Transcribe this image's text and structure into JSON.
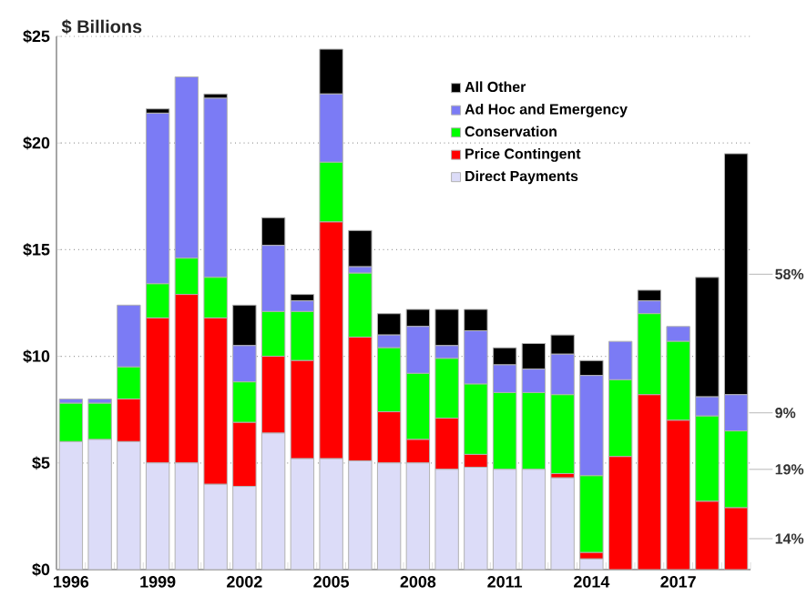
{
  "chart_data": {
    "type": "bar",
    "stacked": true,
    "title": "$ Billions",
    "categories": [
      "1996",
      null,
      null,
      "1999",
      null,
      null,
      "2002",
      null,
      null,
      "2005",
      null,
      null,
      "2008",
      null,
      null,
      "2011",
      null,
      null,
      "2014",
      null,
      null,
      "2017",
      null,
      null
    ],
    "series": [
      {
        "name": "Direct Payments",
        "color": "#dcdcf8",
        "values": [
          6.0,
          6.1,
          6.0,
          5.0,
          5.0,
          4.0,
          3.9,
          6.4,
          5.2,
          5.2,
          5.1,
          5.0,
          5.0,
          4.7,
          4.8,
          4.7,
          4.7,
          4.3,
          0.5,
          0,
          0,
          0,
          0,
          0
        ]
      },
      {
        "name": "Price Contingent",
        "color": "#ff0000",
        "values": [
          0,
          0,
          2.0,
          6.8,
          7.9,
          7.8,
          3.0,
          3.6,
          4.6,
          11.1,
          5.8,
          2.4,
          1.1,
          2.4,
          0.6,
          0,
          0,
          0.2,
          0.3,
          5.3,
          8.2,
          7.0,
          3.2,
          2.9
        ]
      },
      {
        "name": "Conservation",
        "color": "#00ff00",
        "values": [
          1.8,
          1.7,
          1.5,
          1.6,
          1.7,
          1.9,
          1.9,
          2.1,
          2.3,
          2.8,
          3.0,
          3.0,
          3.1,
          2.8,
          3.3,
          3.6,
          3.6,
          3.7,
          3.6,
          3.6,
          3.8,
          3.7,
          4.0,
          3.6
        ]
      },
      {
        "name": "Ad Hoc and Emergency",
        "color": "#7b7bf5",
        "values": [
          0.2,
          0.2,
          2.9,
          8.0,
          8.5,
          8.4,
          1.7,
          3.1,
          0.5,
          3.2,
          0.3,
          0.6,
          2.2,
          0.6,
          2.5,
          1.3,
          1.1,
          1.9,
          4.7,
          1.8,
          0.6,
          0.7,
          0.9,
          1.7
        ]
      },
      {
        "name": "All Other",
        "color": "#000000",
        "values": [
          0,
          0,
          0,
          0.2,
          0,
          0.2,
          1.9,
          1.3,
          0.3,
          2.1,
          1.7,
          1.0,
          0.8,
          1.7,
          1.0,
          0.8,
          1.2,
          0.9,
          0.7,
          0,
          0.5,
          0,
          5.6,
          11.3
        ]
      }
    ],
    "ylim": [
      0,
      25
    ],
    "yticks": [
      {
        "value": 0,
        "label": "$0"
      },
      {
        "value": 5,
        "label": "$5"
      },
      {
        "value": 10,
        "label": "$10"
      },
      {
        "value": 15,
        "label": "$15"
      },
      {
        "value": 20,
        "label": "$20"
      },
      {
        "value": 25,
        "label": "$25"
      }
    ],
    "grid": "y",
    "legend": "top right",
    "annotations": [
      "58%",
      "9%",
      "19%",
      "14%"
    ]
  }
}
